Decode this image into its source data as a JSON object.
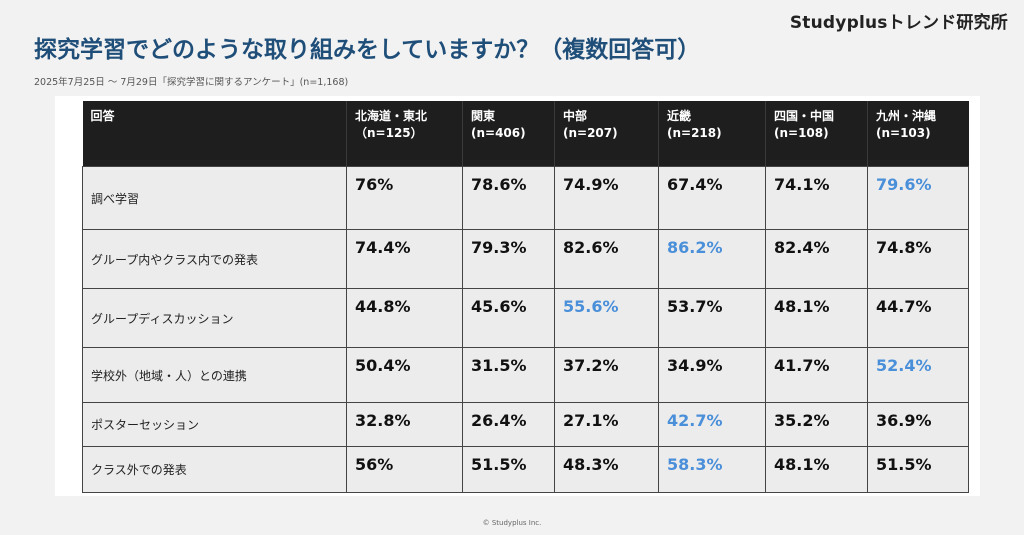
{
  "brand": "Studyplusトレンド研究所",
  "title": "探究学習でどのような取り組みをしていますか？（複数回答可）",
  "subtitle": "2025年7月25日 〜 7月29日「探究学習に関するアンケート」(n=1,168)",
  "colors": {
    "title": "#1f4e79",
    "highlight": "#4a8fd9",
    "header_bg": "#1e1e1e",
    "cell_bg": "#ececec"
  },
  "table": {
    "answer_header": "回答",
    "columns": [
      {
        "label": "北海道・東北",
        "n": "（n=125）"
      },
      {
        "label": "関東",
        "n": "(n=406)"
      },
      {
        "label": "中部",
        "n": "(n=207)"
      },
      {
        "label": "近畿",
        "n": "(n=218)"
      },
      {
        "label": "四国・中国",
        "n": "(n=108)"
      },
      {
        "label": "九州・沖縄",
        "n": "(n=103)"
      }
    ],
    "rows": [
      {
        "answer": "調べ学習",
        "values": [
          "76%",
          "78.6%",
          "74.9%",
          "67.4%",
          "74.1%",
          "79.6%"
        ],
        "highlight": 5
      },
      {
        "answer": "グループ内やクラス内での発表",
        "values": [
          "74.4%",
          "79.3%",
          "82.6%",
          "86.2%",
          "82.4%",
          "74.8%"
        ],
        "highlight": 3
      },
      {
        "answer": "グループディスカッション",
        "values": [
          "44.8%",
          "45.6%",
          "55.6%",
          "53.7%",
          "48.1%",
          "44.7%"
        ],
        "highlight": 2
      },
      {
        "answer": "学校外（地域・人）との連携",
        "values": [
          "50.4%",
          "31.5%",
          "37.2%",
          "34.9%",
          "41.7%",
          "52.4%"
        ],
        "highlight": 5
      },
      {
        "answer": "ポスターセッション",
        "values": [
          "32.8%",
          "26.4%",
          "27.1%",
          "42.7%",
          "35.2%",
          "36.9%"
        ],
        "highlight": 3
      },
      {
        "answer": "クラス外での発表",
        "values": [
          "56%",
          "51.5%",
          "48.3%",
          "58.3%",
          "48.1%",
          "51.5%"
        ],
        "highlight": 3
      }
    ]
  },
  "footer": "© Studyplus Inc."
}
